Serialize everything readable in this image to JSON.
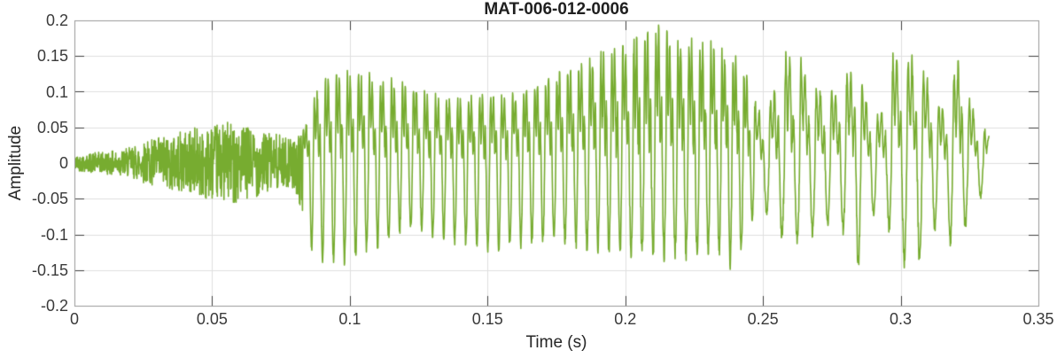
{
  "figure": {
    "background": "#ffffff"
  },
  "chart_data": {
    "type": "line",
    "title": "MAT-006-012-0006",
    "xlabel": "Time (s)",
    "ylabel": "Amplitude",
    "xlim": [
      0,
      0.35
    ],
    "ylim": [
      -0.2,
      0.2
    ],
    "xticks": [
      0,
      0.05,
      0.1,
      0.15,
      0.2,
      0.25,
      0.3,
      0.35
    ],
    "xtick_labels": [
      "0",
      "0.05",
      "0.1",
      "0.15",
      "0.2",
      "0.25",
      "0.3",
      "0.35"
    ],
    "yticks": [
      -0.2,
      -0.15,
      -0.1,
      -0.05,
      0,
      0.05,
      0.1,
      0.15,
      0.2
    ],
    "ytick_labels": [
      "-0.2",
      "-0.15",
      "-0.1",
      "-0.05",
      "0",
      "0.05",
      "0.1",
      "0.15",
      "0.2"
    ],
    "grid": true,
    "legend": null,
    "colors": {
      "line": "#77AC30",
      "grid": "#E0E0E0",
      "axis_border": "#999999",
      "tick_mark": "#404040",
      "tick_label": "#3A3A3A",
      "title": "#1F1F1F"
    },
    "line_width": 1.6,
    "signal": {
      "description": "speech audio waveform: noise onset then voiced periodic bursts",
      "t_start": 0.0,
      "t_end": 0.332,
      "segments": [
        {
          "type": "noise",
          "t0": 0.0,
          "t1": 0.083,
          "f0": 0
        },
        {
          "type": "voiced",
          "t0": 0.083,
          "t1": 0.247,
          "f0": 250
        },
        {
          "type": "voiced",
          "t0": 0.247,
          "t1": 0.332,
          "f0": 180
        }
      ],
      "envelope": [
        [
          0.0,
          0.01,
          -0.01
        ],
        [
          0.004,
          0.013,
          -0.013
        ],
        [
          0.008,
          0.015,
          -0.014
        ],
        [
          0.012,
          0.016,
          -0.016
        ],
        [
          0.016,
          0.018,
          -0.018
        ],
        [
          0.02,
          0.022,
          -0.02
        ],
        [
          0.024,
          0.028,
          -0.026
        ],
        [
          0.028,
          0.034,
          -0.032
        ],
        [
          0.032,
          0.038,
          -0.036
        ],
        [
          0.036,
          0.042,
          -0.04
        ],
        [
          0.04,
          0.046,
          -0.042
        ],
        [
          0.044,
          0.05,
          -0.046
        ],
        [
          0.048,
          0.05,
          -0.05
        ],
        [
          0.052,
          0.054,
          -0.05
        ],
        [
          0.056,
          0.058,
          -0.055
        ],
        [
          0.06,
          0.052,
          -0.055
        ],
        [
          0.064,
          0.05,
          -0.05
        ],
        [
          0.068,
          0.046,
          -0.045
        ],
        [
          0.072,
          0.042,
          -0.04
        ],
        [
          0.076,
          0.038,
          -0.034
        ],
        [
          0.08,
          0.032,
          -0.035
        ],
        [
          0.083,
          0.045,
          -0.08
        ],
        [
          0.086,
          0.075,
          -0.12
        ],
        [
          0.089,
          0.105,
          -0.135
        ],
        [
          0.092,
          0.115,
          -0.138
        ],
        [
          0.096,
          0.12,
          -0.14
        ],
        [
          0.1,
          0.12,
          -0.132
        ],
        [
          0.104,
          0.121,
          -0.125
        ],
        [
          0.108,
          0.116,
          -0.12
        ],
        [
          0.112,
          0.113,
          -0.112
        ],
        [
          0.116,
          0.11,
          -0.1
        ],
        [
          0.12,
          0.114,
          -0.092
        ],
        [
          0.124,
          0.105,
          -0.09
        ],
        [
          0.128,
          0.095,
          -0.095
        ],
        [
          0.132,
          0.09,
          -0.102
        ],
        [
          0.136,
          0.088,
          -0.108
        ],
        [
          0.14,
          0.086,
          -0.11
        ],
        [
          0.144,
          0.09,
          -0.11
        ],
        [
          0.148,
          0.093,
          -0.118
        ],
        [
          0.152,
          0.09,
          -0.12
        ],
        [
          0.156,
          0.092,
          -0.118
        ],
        [
          0.16,
          0.096,
          -0.114
        ],
        [
          0.164,
          0.1,
          -0.11
        ],
        [
          0.168,
          0.108,
          -0.11
        ],
        [
          0.172,
          0.115,
          -0.108
        ],
        [
          0.176,
          0.122,
          -0.105
        ],
        [
          0.18,
          0.13,
          -0.11
        ],
        [
          0.184,
          0.135,
          -0.113
        ],
        [
          0.188,
          0.148,
          -0.118
        ],
        [
          0.192,
          0.152,
          -0.122
        ],
        [
          0.196,
          0.156,
          -0.124
        ],
        [
          0.2,
          0.16,
          -0.12
        ],
        [
          0.204,
          0.17,
          -0.124
        ],
        [
          0.208,
          0.178,
          -0.128
        ],
        [
          0.212,
          0.185,
          -0.13
        ],
        [
          0.216,
          0.172,
          -0.122
        ],
        [
          0.22,
          0.162,
          -0.124
        ],
        [
          0.224,
          0.168,
          -0.128
        ],
        [
          0.228,
          0.165,
          -0.124
        ],
        [
          0.232,
          0.158,
          -0.12
        ],
        [
          0.236,
          0.152,
          -0.122
        ],
        [
          0.24,
          0.145,
          -0.152
        ],
        [
          0.244,
          0.12,
          -0.1
        ],
        [
          0.247,
          0.085,
          -0.07
        ],
        [
          0.25,
          0.065,
          -0.06
        ],
        [
          0.254,
          0.095,
          -0.085
        ],
        [
          0.257,
          0.14,
          -0.1
        ],
        [
          0.261,
          0.15,
          -0.115
        ],
        [
          0.265,
          0.132,
          -0.1
        ],
        [
          0.269,
          0.105,
          -0.092
        ],
        [
          0.273,
          0.095,
          -0.085
        ],
        [
          0.277,
          0.1,
          -0.088
        ],
        [
          0.281,
          0.125,
          -0.095
        ],
        [
          0.284,
          0.145,
          -0.15
        ],
        [
          0.287,
          0.09,
          -0.105
        ],
        [
          0.291,
          0.062,
          -0.065
        ],
        [
          0.295,
          0.085,
          -0.08
        ],
        [
          0.298,
          0.165,
          -0.118
        ],
        [
          0.302,
          0.135,
          -0.14
        ],
        [
          0.305,
          0.152,
          -0.122
        ],
        [
          0.308,
          0.13,
          -0.145
        ],
        [
          0.312,
          0.092,
          -0.092
        ],
        [
          0.316,
          0.072,
          -0.07
        ],
        [
          0.319,
          0.115,
          -0.128
        ],
        [
          0.322,
          0.155,
          -0.1
        ],
        [
          0.325,
          0.085,
          -0.072
        ],
        [
          0.328,
          0.06,
          -0.052
        ],
        [
          0.332,
          0.038,
          -0.03
        ]
      ]
    }
  }
}
